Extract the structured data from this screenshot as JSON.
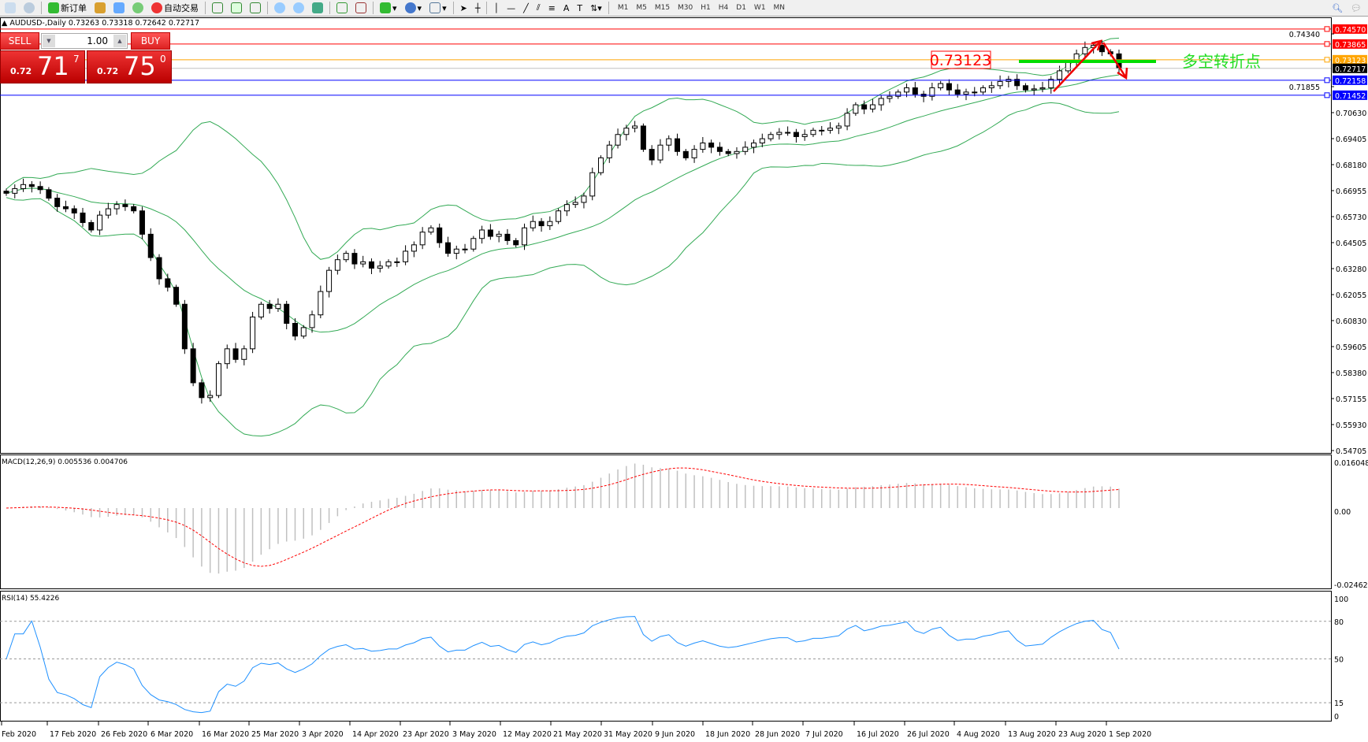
{
  "toolbar": {
    "new_order": "新订单",
    "auto_trading": "自动交易",
    "timeframes": [
      "M1",
      "M5",
      "M15",
      "M30",
      "H1",
      "H4",
      "D1",
      "W1",
      "MN"
    ]
  },
  "chart": {
    "symbol_info": "AUDUSD-,Daily  0.73263 0.73318 0.72642 0.72717"
  },
  "trade_panel": {
    "sell_label": "SELL",
    "buy_label": "BUY",
    "lot": "1.00",
    "sell_prefix": "0.72",
    "sell_big": "71",
    "sell_sup": "7",
    "buy_prefix": "0.72",
    "buy_big": "75",
    "buy_sup": "0"
  },
  "annotations": {
    "pivot_price_label": "0.73123",
    "pivot_text": "多空转折点",
    "pivot_text_color": "#22dd22"
  },
  "chart_data": {
    "type": "candlestick",
    "price_ticks": [
      "0.70630",
      "0.69405",
      "0.68180",
      "0.66955",
      "0.65730",
      "0.64505",
      "0.63280",
      "0.62055",
      "0.60830",
      "0.59605",
      "0.58380",
      "0.57155",
      "0.55930",
      "0.54705"
    ],
    "extra_ticks": [
      "0.74340",
      "0.71855"
    ],
    "levels": [
      {
        "value": "0.74570",
        "color": "#ff0000"
      },
      {
        "value": "0.73865",
        "color": "#ff0000"
      },
      {
        "value": "0.73123",
        "color": "#ffa500"
      },
      {
        "value": "0.72717",
        "color": "#000000",
        "line": "#c0c0c0"
      },
      {
        "value": "0.72158",
        "color": "#0000ff"
      },
      {
        "value": "0.71452",
        "color": "#0000ff"
      }
    ],
    "x_labels": [
      "Feb 2020",
      "17 Feb 2020",
      "26 Feb 2020",
      "6 Mar 2020",
      "16 Mar 2020",
      "25 Mar 2020",
      "3 Apr 2020",
      "14 Apr 2020",
      "23 Apr 2020",
      "3 May 2020",
      "12 May 2020",
      "21 May 2020",
      "31 May 2020",
      "9 Jun 2020",
      "18 Jun 2020",
      "28 Jun 2020",
      "7 Jul 2020",
      "16 Jul 2020",
      "26 Jul 2020",
      "4 Aug 2020",
      "13 Aug 2020",
      "23 Aug 2020",
      "1 Sep 2020"
    ],
    "closes": [
      0.6683,
      0.6705,
      0.6724,
      0.6715,
      0.67,
      0.666,
      0.662,
      0.661,
      0.659,
      0.6545,
      0.651,
      0.658,
      0.661,
      0.663,
      0.662,
      0.66,
      0.649,
      0.638,
      0.628,
      0.624,
      0.616,
      0.595,
      0.579,
      0.572,
      0.573,
      0.588,
      0.595,
      0.59,
      0.595,
      0.61,
      0.616,
      0.614,
      0.616,
      0.607,
      0.601,
      0.605,
      0.611,
      0.622,
      0.632,
      0.637,
      0.64,
      0.635,
      0.636,
      0.633,
      0.634,
      0.636,
      0.636,
      0.641,
      0.644,
      0.65,
      0.652,
      0.645,
      0.64,
      0.642,
      0.642,
      0.647,
      0.651,
      0.648,
      0.649,
      0.646,
      0.644,
      0.652,
      0.655,
      0.653,
      0.655,
      0.66,
      0.663,
      0.664,
      0.667,
      0.678,
      0.685,
      0.691,
      0.696,
      0.699,
      0.7,
      0.689,
      0.684,
      0.691,
      0.694,
      0.688,
      0.685,
      0.689,
      0.692,
      0.69,
      0.688,
      0.687,
      0.688,
      0.69,
      0.692,
      0.694,
      0.696,
      0.697,
      0.697,
      0.695,
      0.696,
      0.698,
      0.698,
      0.699,
      0.7,
      0.706,
      0.71,
      0.708,
      0.71,
      0.713,
      0.714,
      0.716,
      0.718,
      0.715,
      0.714,
      0.718,
      0.72,
      0.717,
      0.715,
      0.716,
      0.716,
      0.718,
      0.719,
      0.721,
      0.722,
      0.719,
      0.717,
      0.7175,
      0.718,
      0.722,
      0.726,
      0.73,
      0.734,
      0.737,
      0.738,
      0.735,
      0.734,
      0.7272
    ],
    "indicators": {
      "bands": "Bollinger(20,2)",
      "band_color": "#33aa55"
    },
    "macd": {
      "label": "MACD(12,26,9) 0.005536 0.004706",
      "ticks": [
        "0.016048",
        "0.00",
        "-0.024625"
      ],
      "signal_color": "#ff0000",
      "hist_color": "#c0c0c0"
    },
    "rsi": {
      "label": "RSI(14) 55.4226",
      "ticks": [
        "100",
        "80",
        "50",
        "15",
        "0"
      ],
      "line_color": "#1e90ff"
    }
  }
}
